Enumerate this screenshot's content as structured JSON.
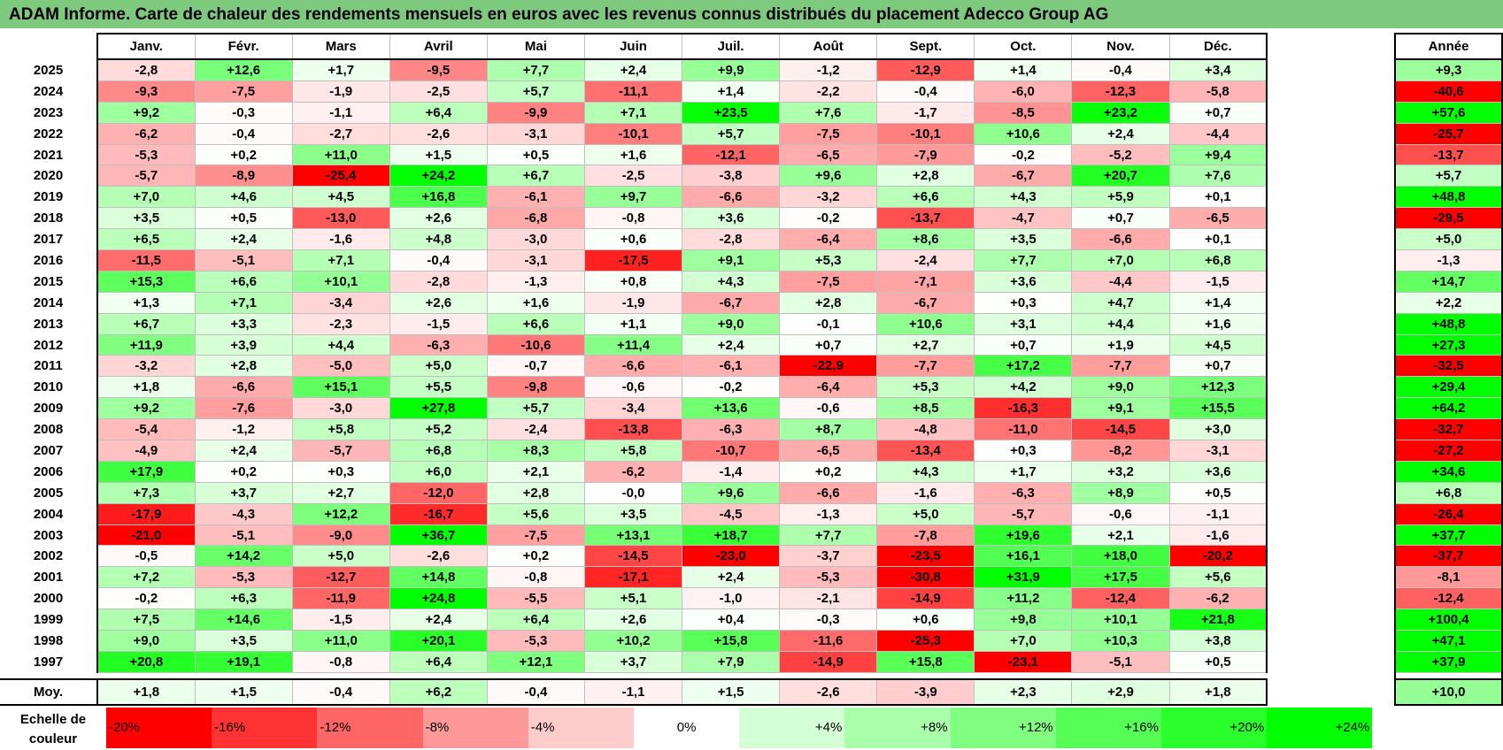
{
  "title": "ADAM Informe. Carte de chaleur des rendements mensuels en euros avec les revenus connus distribués du placement Adecco Group AG",
  "chart_data": {
    "type": "heatmap",
    "months": [
      "Janv.",
      "Févr.",
      "Mars",
      "Avril",
      "Mai",
      "Juin",
      "Juil.",
      "Août",
      "Sept.",
      "Oct.",
      "Nov.",
      "Déc."
    ],
    "annual_header": "Année",
    "avg_label": "Moy.",
    "rows": [
      {
        "year": "2025",
        "values": [
          "-2,8",
          "+12,6",
          "+1,7",
          "-9,5",
          "+7,7",
          "+2,4",
          "+9,9",
          "-1,2",
          "-12,9",
          "+1,4",
          "-0,4",
          "+3,4"
        ],
        "annual": "+9,3"
      },
      {
        "year": "2024",
        "values": [
          "-9,3",
          "-7,5",
          "-1,9",
          "-2,5",
          "+5,7",
          "-11,1",
          "+1,4",
          "-2,2",
          "-0,4",
          "-6,0",
          "-12,3",
          "-5,8"
        ],
        "annual": "-40,6"
      },
      {
        "year": "2023",
        "values": [
          "+9,2",
          "-0,3",
          "-1,1",
          "+6,4",
          "-9,9",
          "+7,1",
          "+23,5",
          "+7,6",
          "-1,7",
          "-8,5",
          "+23,2",
          "+0,7"
        ],
        "annual": "+57,6"
      },
      {
        "year": "2022",
        "values": [
          "-6,2",
          "-0,4",
          "-2,7",
          "-2,6",
          "-3,1",
          "-10,1",
          "+5,7",
          "-7,5",
          "-10,1",
          "+10,6",
          "+2,4",
          "-4,4"
        ],
        "annual": "-25,7"
      },
      {
        "year": "2021",
        "values": [
          "-5,3",
          "+0,2",
          "+11,0",
          "+1,5",
          "+0,5",
          "+1,6",
          "-12,1",
          "-6,5",
          "-7,9",
          "-0,2",
          "-5,2",
          "+9,4"
        ],
        "annual": "-13,7"
      },
      {
        "year": "2020",
        "values": [
          "-5,7",
          "-8,9",
          "-25,4",
          "+24,2",
          "+6,7",
          "-2,5",
          "-3,8",
          "+9,6",
          "+2,8",
          "-6,7",
          "+20,7",
          "+7,6"
        ],
        "annual": "+5,7"
      },
      {
        "year": "2019",
        "values": [
          "+7,0",
          "+4,6",
          "+4,5",
          "+16,8",
          "-6,1",
          "+9,7",
          "-6,6",
          "-3,2",
          "+6,6",
          "+4,3",
          "+5,9",
          "+0,1"
        ],
        "annual": "+48,8"
      },
      {
        "year": "2018",
        "values": [
          "+3,5",
          "+0,5",
          "-13,0",
          "+2,6",
          "-6,8",
          "-0,8",
          "+3,6",
          "-0,2",
          "-13,7",
          "-4,7",
          "+0,7",
          "-6,5"
        ],
        "annual": "-29,5"
      },
      {
        "year": "2017",
        "values": [
          "+6,5",
          "+2,4",
          "-1,6",
          "+4,8",
          "-3,0",
          "+0,6",
          "-2,8",
          "-6,4",
          "+8,6",
          "+3,5",
          "-6,6",
          "+0,1"
        ],
        "annual": "+5,0"
      },
      {
        "year": "2016",
        "values": [
          "-11,5",
          "-5,1",
          "+7,1",
          "-0,4",
          "-3,1",
          "-17,5",
          "+9,1",
          "+5,3",
          "-2,4",
          "+7,7",
          "+7,0",
          "+6,8"
        ],
        "annual": "-1,3"
      },
      {
        "year": "2015",
        "values": [
          "+15,3",
          "+6,6",
          "+10,1",
          "-2,8",
          "-1,3",
          "+0,8",
          "+4,3",
          "-7,5",
          "-7,1",
          "+3,6",
          "-4,4",
          "-1,5"
        ],
        "annual": "+14,7"
      },
      {
        "year": "2014",
        "values": [
          "+1,3",
          "+7,1",
          "-3,4",
          "+2,6",
          "+1,6",
          "-1,9",
          "-6,7",
          "+2,8",
          "-6,7",
          "+0,3",
          "+4,7",
          "+1,4"
        ],
        "annual": "+2,2"
      },
      {
        "year": "2013",
        "values": [
          "+6,7",
          "+3,3",
          "-2,3",
          "-1,5",
          "+6,6",
          "+1,1",
          "+9,0",
          "-0,1",
          "+10,6",
          "+3,1",
          "+4,4",
          "+1,6"
        ],
        "annual": "+48,8"
      },
      {
        "year": "2012",
        "values": [
          "+11,9",
          "+3,9",
          "+4,4",
          "-6,3",
          "-10,6",
          "+11,4",
          "+2,4",
          "+0,7",
          "+2,7",
          "+0,7",
          "+1,9",
          "+4,5"
        ],
        "annual": "+27,3"
      },
      {
        "year": "2011",
        "values": [
          "-3,2",
          "+2,8",
          "-5,0",
          "+5,0",
          "-0,7",
          "-6,6",
          "-6,1",
          "-22,9",
          "-7,7",
          "+17,2",
          "-7,7",
          "+0,7"
        ],
        "annual": "-32,5"
      },
      {
        "year": "2010",
        "values": [
          "+1,8",
          "-6,6",
          "+15,1",
          "+5,5",
          "-9,8",
          "-0,6",
          "-0,2",
          "-6,4",
          "+5,3",
          "+4,2",
          "+9,0",
          "+12,3"
        ],
        "annual": "+29,4"
      },
      {
        "year": "2009",
        "values": [
          "+9,2",
          "-7,6",
          "-3,0",
          "+27,8",
          "+5,7",
          "-3,4",
          "+13,6",
          "-0,6",
          "+8,5",
          "-16,3",
          "+9,1",
          "+15,5"
        ],
        "annual": "+64,2"
      },
      {
        "year": "2008",
        "values": [
          "-5,4",
          "-1,2",
          "+5,8",
          "+5,2",
          "-2,4",
          "-13,8",
          "-6,3",
          "+8,7",
          "-4,8",
          "-11,0",
          "-14,5",
          "+3,0"
        ],
        "annual": "-32,7"
      },
      {
        "year": "2007",
        "values": [
          "-4,9",
          "+2,4",
          "-5,7",
          "+6,8",
          "+8,3",
          "+5,8",
          "-10,7",
          "-6,5",
          "-13,4",
          "+0,3",
          "-8,2",
          "-3,1"
        ],
        "annual": "-27,2"
      },
      {
        "year": "2006",
        "values": [
          "+17,9",
          "+0,2",
          "+0,3",
          "+6,0",
          "+2,1",
          "-6,2",
          "-1,4",
          "+0,2",
          "+4,3",
          "+1,7",
          "+3,2",
          "+3,6"
        ],
        "annual": "+34,6"
      },
      {
        "year": "2005",
        "values": [
          "+7,3",
          "+3,7",
          "+2,7",
          "-12,0",
          "+2,8",
          "-0,0",
          "+9,6",
          "-6,6",
          "-1,6",
          "-6,3",
          "+8,9",
          "+0,5"
        ],
        "annual": "+6,8"
      },
      {
        "year": "2004",
        "values": [
          "-17,9",
          "-4,3",
          "+12,2",
          "-16,7",
          "+5,6",
          "+3,5",
          "-4,5",
          "-1,3",
          "+5,0",
          "-5,7",
          "-0,6",
          "-1,1"
        ],
        "annual": "-26,4"
      },
      {
        "year": "2003",
        "values": [
          "-21,0",
          "-5,1",
          "-9,0",
          "+36,7",
          "-7,5",
          "+13,1",
          "+18,7",
          "+7,7",
          "-7,8",
          "+19,6",
          "+2,1",
          "-1,6"
        ],
        "annual": "+37,7"
      },
      {
        "year": "2002",
        "values": [
          "-0,5",
          "+14,2",
          "+5,0",
          "-2,6",
          "+0,2",
          "-14,5",
          "-23,0",
          "-3,7",
          "-23,5",
          "+16,1",
          "+18,0",
          "-20,2"
        ],
        "annual": "-37,7"
      },
      {
        "year": "2001",
        "values": [
          "+7,2",
          "-5,3",
          "-12,7",
          "+14,8",
          "-0,8",
          "-17,1",
          "+2,4",
          "-5,3",
          "-30,8",
          "+31,9",
          "+17,5",
          "+5,6"
        ],
        "annual": "-8,1"
      },
      {
        "year": "2000",
        "values": [
          "-0,2",
          "+6,3",
          "-11,9",
          "+24,8",
          "-5,5",
          "+5,1",
          "-1,0",
          "-2,1",
          "-14,9",
          "+11,2",
          "-12,4",
          "-6,2"
        ],
        "annual": "-12,4"
      },
      {
        "year": "1999",
        "values": [
          "+7,5",
          "+14,6",
          "-1,5",
          "+2,4",
          "+6,4",
          "+2,6",
          "+0,4",
          "-0,3",
          "+0,6",
          "+9,8",
          "+10,1",
          "+21,8"
        ],
        "annual": "+100,4"
      },
      {
        "year": "1998",
        "values": [
          "+9,0",
          "+3,5",
          "+11,0",
          "+20,1",
          "-5,3",
          "+10,2",
          "+15,8",
          "-11,6",
          "-25,3",
          "+7,0",
          "+10,3",
          "+3,8"
        ],
        "annual": "+47,1"
      },
      {
        "year": "1997",
        "values": [
          "+20,8",
          "+19,1",
          "-0,8",
          "+6,4",
          "+12,1",
          "+3,7",
          "+7,9",
          "-14,9",
          "+15,8",
          "-23,1",
          "-5,1",
          "+0,5"
        ],
        "annual": "+37,9"
      }
    ],
    "averages": [
      "+1,8",
      "+1,5",
      "-0,4",
      "+6,2",
      "-0,4",
      "-1,1",
      "+1,5",
      "-2,6",
      "-3,9",
      "+2,3",
      "+2,9",
      "+1,8"
    ],
    "annual_average": "+10,0",
    "color_scale": {
      "label": "Echelle de couleur",
      "stops": [
        "-20%",
        "-16%",
        "-12%",
        "-8%",
        "-4%",
        "0%",
        "+4%",
        "+8%",
        "+12%",
        "+16%",
        "+20%",
        "+24%"
      ],
      "negative_color": "#ff0000",
      "neutral_color": "#ffffff",
      "positive_color": "#00ff00"
    }
  }
}
